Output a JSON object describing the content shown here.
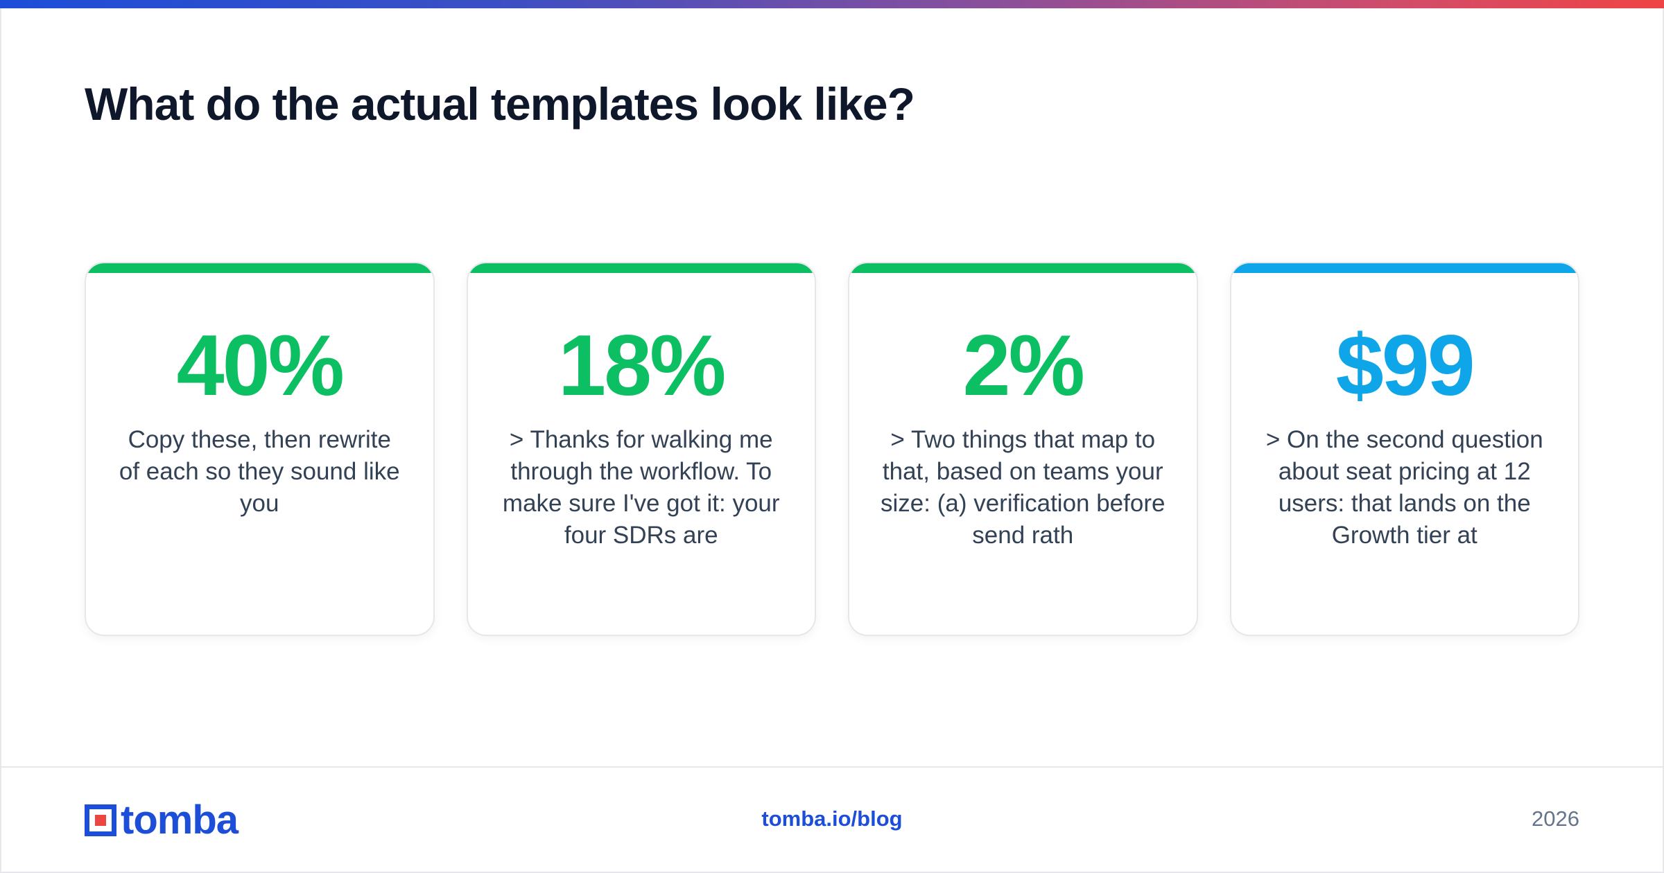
{
  "header": {
    "title": "What do the actual templates look like?"
  },
  "colors": {
    "green": "#0dbf63",
    "blue": "#0ea5e9"
  },
  "cards": [
    {
      "stat": "40%",
      "accent": "green",
      "description": "Copy these, then rewrite of each so they sound like you"
    },
    {
      "stat": "18%",
      "accent": "green",
      "description": "> Thanks for walking me through the workflow. To make sure I've got it: your four SDRs are"
    },
    {
      "stat": "2%",
      "accent": "green",
      "description": "> Two things that map to that, based on teams your size: (a) verification before send rath"
    },
    {
      "stat": "$99",
      "accent": "blue",
      "description": "> On the second question about seat pricing at 12 users: that lands on the Growth tier at"
    }
  ],
  "footer": {
    "logo_text": "tomba",
    "link": "tomba.io/blog",
    "year": "2026"
  }
}
